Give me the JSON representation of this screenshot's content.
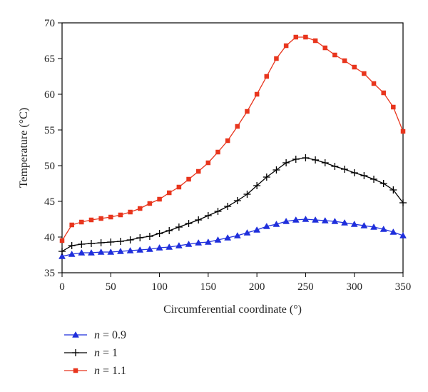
{
  "chart_data": {
    "type": "line",
    "xlabel": "Circumferential coordinate (°)",
    "ylabel": "Temperature (°C)",
    "xlim": [
      0,
      350
    ],
    "ylim": [
      35,
      70
    ],
    "x_ticks": [
      0,
      50,
      100,
      150,
      200,
      250,
      300,
      350
    ],
    "y_ticks": [
      35,
      40,
      45,
      50,
      55,
      60,
      65,
      70
    ],
    "x_tick_labels": [
      "0",
      "50",
      "100",
      "150",
      "200",
      "250",
      "300",
      "350"
    ],
    "y_tick_labels": [
      "35",
      "40",
      "45",
      "50",
      "55",
      "60",
      "65",
      "70"
    ],
    "grid": false,
    "legend_position": "bottom-left",
    "x": [
      0,
      10,
      20,
      30,
      40,
      50,
      60,
      70,
      80,
      90,
      100,
      110,
      120,
      130,
      140,
      150,
      160,
      170,
      180,
      190,
      200,
      210,
      220,
      230,
      240,
      250,
      260,
      270,
      280,
      290,
      300,
      310,
      320,
      330,
      340,
      350
    ],
    "series": [
      {
        "name": "n = 0.9",
        "name_var": "n",
        "name_val": "0.9",
        "color": "#1f2fdc",
        "marker": "triangle",
        "values": [
          37.3,
          37.6,
          37.8,
          37.8,
          37.9,
          37.9,
          38.0,
          38.1,
          38.2,
          38.3,
          38.5,
          38.6,
          38.8,
          39.0,
          39.2,
          39.3,
          39.6,
          39.9,
          40.2,
          40.6,
          41.0,
          41.5,
          41.8,
          42.2,
          42.4,
          42.5,
          42.4,
          42.3,
          42.2,
          42.0,
          41.8,
          41.6,
          41.4,
          41.1,
          40.7,
          40.2
        ]
      },
      {
        "name": "n = 1",
        "name_var": "n",
        "name_val": "1",
        "color": "#000000",
        "marker": "plus",
        "values": [
          38.0,
          38.8,
          39.0,
          39.1,
          39.2,
          39.3,
          39.4,
          39.6,
          39.9,
          40.1,
          40.5,
          40.9,
          41.4,
          41.9,
          42.4,
          43.0,
          43.6,
          44.3,
          45.1,
          46.0,
          47.2,
          48.4,
          49.4,
          50.4,
          50.9,
          51.1,
          50.8,
          50.4,
          49.9,
          49.5,
          49.0,
          48.6,
          48.1,
          47.5,
          46.6,
          44.8
        ]
      },
      {
        "name": "n = 1.1",
        "name_var": "n",
        "name_val": "1.1",
        "color": "#e8351d",
        "marker": "square",
        "values": [
          39.5,
          41.7,
          42.1,
          42.4,
          42.6,
          42.8,
          43.1,
          43.5,
          44.0,
          44.7,
          45.3,
          46.2,
          47.0,
          48.1,
          49.2,
          50.4,
          51.9,
          53.5,
          55.5,
          57.6,
          60.0,
          62.5,
          65.0,
          66.8,
          68.0,
          68.0,
          67.5,
          66.5,
          65.5,
          64.7,
          63.8,
          62.9,
          61.5,
          60.2,
          58.2,
          54.8
        ]
      }
    ]
  }
}
